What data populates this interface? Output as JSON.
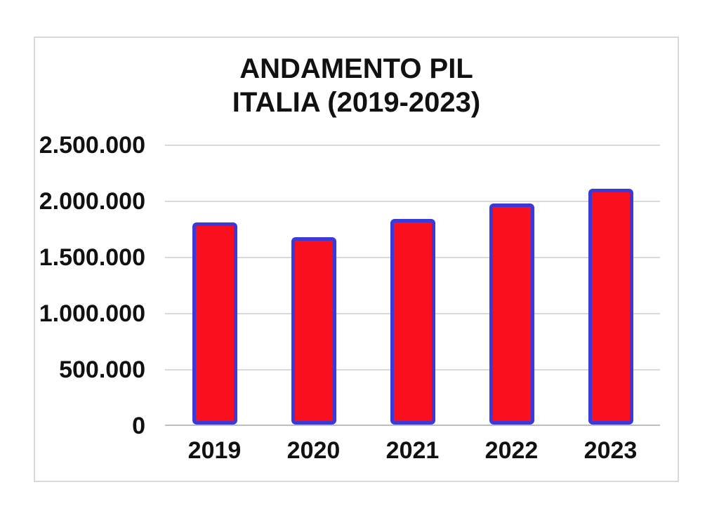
{
  "page": {
    "background_color": "#ffffff",
    "frame_border_color": "#d9d9d9"
  },
  "chart_data": {
    "type": "bar",
    "title": "ANDAMENTO PIL",
    "subtitle": "ITALIA (2019-2023)",
    "categories": [
      "2019",
      "2020",
      "2021",
      "2022",
      "2023"
    ],
    "values": [
      1800000,
      1670000,
      1830000,
      1970000,
      2100000
    ],
    "xlabel": "",
    "ylabel": "",
    "ylim": [
      0,
      2500000
    ],
    "ytick_step": 500000,
    "ytick_labels": [
      "0",
      "500.000",
      "1.000.000",
      "1.500.000",
      "2.000.000",
      "2.500.000"
    ],
    "grid": true,
    "legend": false,
    "bar_fill_color": "#fa0f1e",
    "bar_border_color": "#3a3ad9",
    "gridline_color": "#d9d9d9",
    "axis_line_color": "#bfbfbf",
    "text_color": "#111111"
  }
}
